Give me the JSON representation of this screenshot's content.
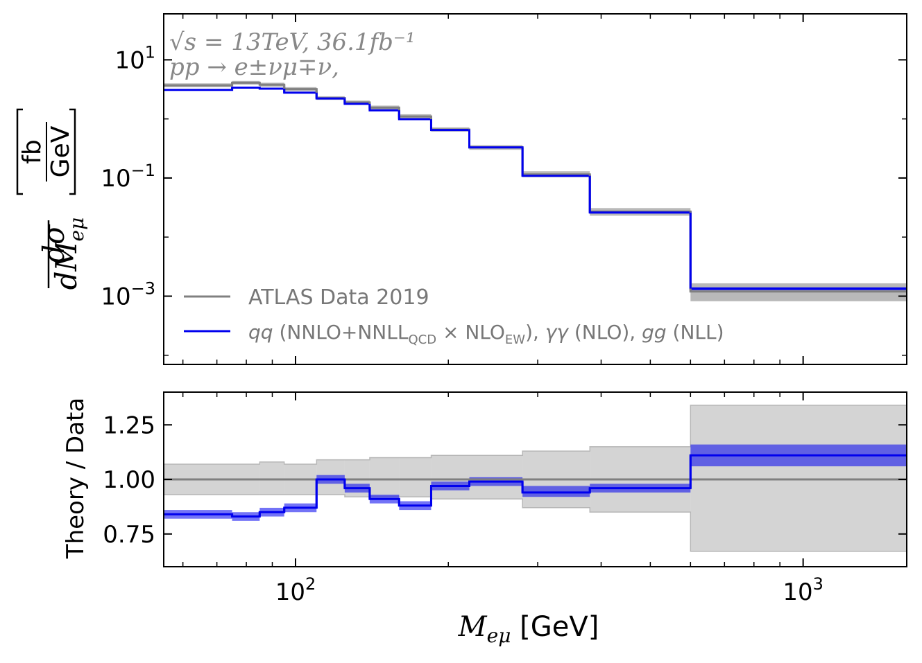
{
  "chart_data": [
    {
      "type": "line",
      "panel": "main",
      "title": "",
      "xlabel": "M_eμ [GeV]",
      "ylabel": "dσ/dM_eμ [fb/GeV]",
      "ylabel_parts": {
        "d1": "dσ",
        "d2": "dM",
        "sub": "eμ",
        "num": "fb",
        "den": "GeV"
      },
      "xscale": "log",
      "yscale": "log",
      "xlim": [
        55,
        1600
      ],
      "ylim": [
        7e-05,
        60
      ],
      "y_ticks": [
        {
          "base": "10",
          "exp": "1",
          "value": 10
        },
        {
          "base": "10",
          "exp": "−1",
          "value": 0.1
        },
        {
          "base": "10",
          "exp": "−3",
          "value": 0.001
        }
      ],
      "annotation": {
        "line1": "√s = 13TeV, 36.1fb⁻¹",
        "line2": "pp → e±νμ∓ν,"
      },
      "legend": {
        "location": "lower-left",
        "data_label": "ATLAS Data 2019",
        "theory_label": {
          "qq": "qq",
          "p1": " (NNLO+NNLL",
          "qcd": "QCD",
          "times": " × NLO",
          "ew": "EW",
          "p2": "), ",
          "gg_gamma": "γγ",
          "p3": " (NLO), ",
          "gg": "gg",
          "p4": " (NLL)"
        }
      },
      "bin_edges": [
        55,
        75,
        85,
        95,
        110,
        125,
        140,
        160,
        185,
        220,
        280,
        380,
        600,
        1600
      ],
      "series": [
        {
          "name": "ATLAS Data 2019",
          "color": "#808080",
          "values": [
            3.7,
            4.1,
            3.8,
            3.2,
            2.25,
            1.9,
            1.55,
            1.1,
            0.66,
            0.33,
            0.115,
            0.027,
            0.0012
          ],
          "band_lo": [
            3.45,
            3.8,
            3.5,
            2.95,
            2.1,
            1.75,
            1.42,
            1.0,
            0.61,
            0.3,
            0.103,
            0.023,
            0.00082
          ],
          "band_hi": [
            4.0,
            4.4,
            4.1,
            3.45,
            2.42,
            2.05,
            1.68,
            1.2,
            0.72,
            0.36,
            0.13,
            0.031,
            0.00165
          ]
        },
        {
          "name": "qq (NNLO+NNLL_QCD × NLO_EW), γγ (NLO), gg (NLL)",
          "color": "#0000ee",
          "values": [
            3.1,
            3.38,
            3.25,
            2.78,
            2.22,
            1.8,
            1.4,
            0.99,
            0.65,
            0.33,
            0.109,
            0.026,
            0.00134
          ],
          "band_lo": [
            3.0,
            3.27,
            3.14,
            2.69,
            2.15,
            1.74,
            1.35,
            0.96,
            0.63,
            0.32,
            0.105,
            0.025,
            0.00126
          ],
          "band_hi": [
            3.2,
            3.49,
            3.36,
            2.87,
            2.29,
            1.86,
            1.45,
            1.02,
            0.67,
            0.34,
            0.113,
            0.027,
            0.00142
          ]
        }
      ]
    },
    {
      "type": "line",
      "panel": "ratio",
      "xlabel": "M_eμ [GeV]",
      "xlabel_parts": {
        "M": "M",
        "sub": "eμ",
        "unit": " [GeV]"
      },
      "ylabel": "Theory / Data",
      "xscale": "log",
      "xlim": [
        55,
        1600
      ],
      "ylim": [
        0.6,
        1.4
      ],
      "x_ticks": [
        {
          "base": "10",
          "exp": "2",
          "value": 100
        },
        {
          "base": "10",
          "exp": "3",
          "value": 1000
        }
      ],
      "y_ticks": [
        0.75,
        1.0,
        1.25
      ],
      "y_tick_labels": [
        "0.75",
        "1.00",
        "1.25"
      ],
      "reference_line": 1.0,
      "bin_edges": [
        55,
        75,
        85,
        95,
        110,
        125,
        140,
        160,
        185,
        220,
        280,
        380,
        600,
        1600
      ],
      "data_uncertainty_lo": [
        0.93,
        0.93,
        0.93,
        0.93,
        0.93,
        0.92,
        0.92,
        0.92,
        0.91,
        0.91,
        0.87,
        0.85,
        0.67
      ],
      "data_uncertainty_hi": [
        1.07,
        1.07,
        1.08,
        1.07,
        1.09,
        1.09,
        1.1,
        1.1,
        1.11,
        1.11,
        1.13,
        1.15,
        1.34
      ],
      "series": [
        {
          "name": "Theory / Data",
          "color": "#0000ee",
          "values": [
            0.84,
            0.83,
            0.85,
            0.87,
            1.0,
            0.96,
            0.91,
            0.88,
            0.97,
            0.99,
            0.94,
            0.96,
            1.11
          ],
          "band_lo": [
            0.82,
            0.81,
            0.83,
            0.85,
            0.98,
            0.94,
            0.89,
            0.86,
            0.95,
            0.97,
            0.92,
            0.94,
            1.06
          ],
          "band_hi": [
            0.86,
            0.85,
            0.87,
            0.89,
            1.02,
            0.98,
            0.93,
            0.9,
            0.99,
            1.01,
            0.97,
            0.98,
            1.16
          ]
        }
      ]
    }
  ]
}
